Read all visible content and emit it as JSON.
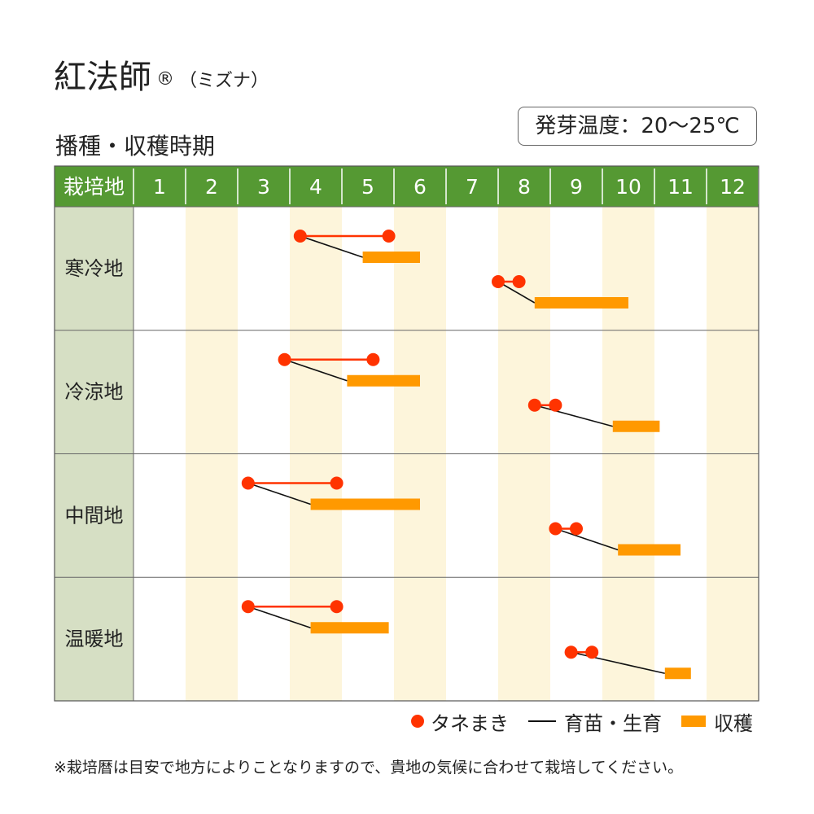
{
  "header": {
    "title": "紅法師",
    "registered_mark": "®",
    "subtitle_variety": "（ミズナ）",
    "section_title": "播種・収穫時期",
    "germination_temp": "発芽温度：20〜25℃"
  },
  "colors": {
    "header_green": "#559933",
    "region_bg": "#d6dfc4",
    "alt_column": "#fdf5db",
    "sowing": "#ff3300",
    "growing": "#111111",
    "harvest": "#ff9900",
    "grid": "#bbbbbb"
  },
  "chart_data": {
    "type": "table",
    "title": "播種・収穫時期",
    "header_label": "栽培地",
    "months": [
      "1",
      "2",
      "3",
      "4",
      "5",
      "6",
      "7",
      "8",
      "9",
      "10",
      "11",
      "12"
    ],
    "regions": [
      {
        "name": "寒冷地",
        "cycles": [
          {
            "sow": [
              4.2,
              5.9
            ],
            "growth": [
              4.2,
              5.4
            ],
            "harvest": [
              5.4,
              6.5
            ]
          },
          {
            "sow": [
              8.0,
              8.4
            ],
            "growth": [
              8.0,
              8.7
            ],
            "harvest": [
              8.7,
              10.5
            ]
          }
        ]
      },
      {
        "name": "冷涼地",
        "cycles": [
          {
            "sow": [
              3.9,
              5.6
            ],
            "growth": [
              3.9,
              5.1
            ],
            "harvest": [
              5.1,
              6.5
            ]
          },
          {
            "sow": [
              8.7,
              9.1
            ],
            "growth": [
              8.7,
              10.2
            ],
            "harvest": [
              10.2,
              11.1
            ]
          }
        ]
      },
      {
        "name": "中間地",
        "cycles": [
          {
            "sow": [
              3.2,
              4.9
            ],
            "growth": [
              3.2,
              4.4
            ],
            "harvest": [
              4.4,
              6.5
            ]
          },
          {
            "sow": [
              9.1,
              9.5
            ],
            "growth": [
              9.1,
              10.3
            ],
            "harvest": [
              10.3,
              11.5
            ]
          }
        ]
      },
      {
        "name": "温暖地",
        "cycles": [
          {
            "sow": [
              3.2,
              4.9
            ],
            "growth": [
              3.2,
              4.4
            ],
            "harvest": [
              4.4,
              5.9
            ]
          },
          {
            "sow": [
              9.4,
              9.8
            ],
            "growth": [
              9.4,
              11.2
            ],
            "harvest": [
              11.2,
              11.7
            ]
          }
        ]
      }
    ],
    "legend": [
      {
        "key": "sow",
        "label": "タネまき"
      },
      {
        "key": "growth",
        "label": "育苗・生育"
      },
      {
        "key": "harvest",
        "label": "収穫"
      }
    ],
    "legend_position": "bottom-right"
  },
  "footnote": "※栽培暦は目安で地方によりことなりますので、貴地の気候に合わせて栽培してください。"
}
